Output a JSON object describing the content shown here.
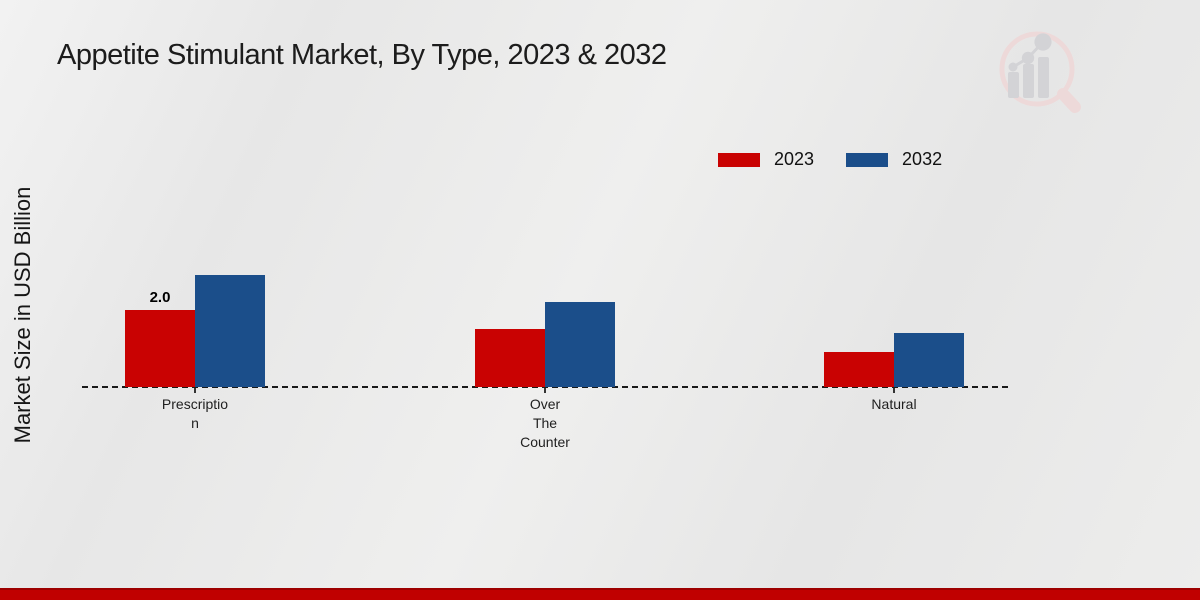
{
  "chart_data": {
    "type": "bar",
    "title": "Appetite Stimulant Market, By Type, 2023 & 2032",
    "ylabel": "Market Size in USD Billion",
    "xlabel": "",
    "categories": [
      "Prescription",
      "Over The Counter",
      "Natural"
    ],
    "categories_display": [
      [
        "Prescriptio",
        "n"
      ],
      [
        "Over",
        "The",
        "Counter"
      ],
      [
        "Natural"
      ]
    ],
    "series": [
      {
        "name": "2023",
        "color": "#c90202",
        "values": [
          2.0,
          1.5,
          0.9
        ],
        "data_labels": [
          "2.0",
          "",
          ""
        ]
      },
      {
        "name": "2032",
        "color": "#1b4e8a",
        "values": [
          2.9,
          2.2,
          1.4
        ],
        "data_labels": [
          "",
          "",
          ""
        ]
      }
    ],
    "ylim": [
      0,
      3.2
    ],
    "grid": false,
    "legend_position": "top-right",
    "baseline_style": "dashed",
    "baseline_color": "#1a1a1a"
  },
  "branding": {
    "footer_bar_color": "#c00000",
    "logo_ring_color": "#eed9d9",
    "logo_bar_color": "#d2d2d6"
  }
}
